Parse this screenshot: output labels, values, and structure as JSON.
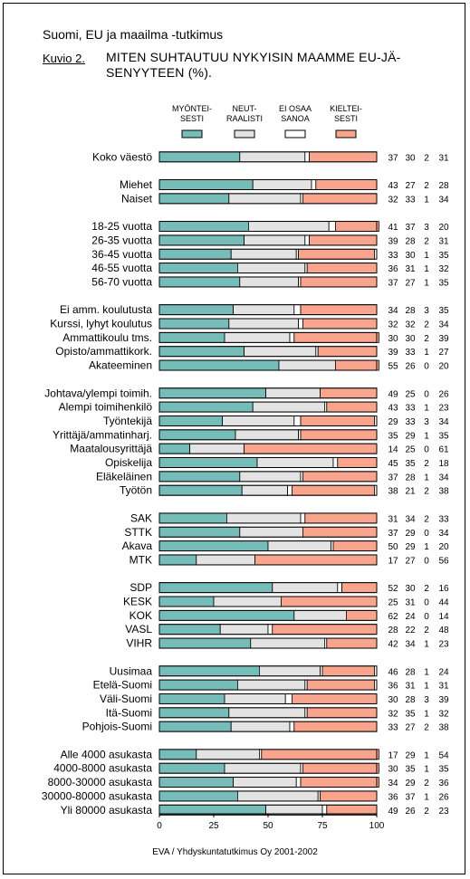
{
  "suptitle": "Suomi, EU ja maailma -tutkimus",
  "figure_label": "Kuvio 2.",
  "title_line1": "MITEN SUHTAUTUU NYKYISIN MAAMME EU-JÄ-",
  "title_line2": "SENYYTEEN (%).",
  "source": "EVA / Yhdyskuntatutkimus Oy 2001-2002",
  "colors": {
    "positive": "#76bcb9",
    "neutral": "#e3e3e3",
    "dont_know": "#ffffff",
    "negative": "#f9a58d"
  },
  "chart_data": {
    "type": "bar",
    "orientation": "horizontal",
    "stacked": true,
    "xlim": [
      0,
      100
    ],
    "xticks": [
      "0",
      "25",
      "50",
      "75",
      "100"
    ],
    "legend_position": "top",
    "grid": false,
    "series": [
      {
        "name_lines": [
          "MYÖNTEI-",
          "SESTI"
        ],
        "color": "#76bcb9"
      },
      {
        "name_lines": [
          "NEUT-",
          "RAALISTI"
        ],
        "color": "#e3e3e3"
      },
      {
        "name_lines": [
          "EI OSAA",
          "SANOA"
        ],
        "color": "#ffffff"
      },
      {
        "name_lines": [
          "KIELTEI-",
          "SESTI"
        ],
        "color": "#f9a58d"
      }
    ],
    "groups": [
      {
        "rows": [
          {
            "label": "Koko väestö",
            "values": [
              37,
              30,
              2,
              31
            ]
          }
        ]
      },
      {
        "rows": [
          {
            "label": "Miehet",
            "values": [
              43,
              27,
              2,
              28
            ]
          },
          {
            "label": "Naiset",
            "values": [
              32,
              33,
              1,
              34
            ]
          }
        ]
      },
      {
        "rows": [
          {
            "label": "18-25 vuotta",
            "values": [
              41,
              37,
              3,
              20
            ]
          },
          {
            "label": "26-35 vuotta",
            "values": [
              39,
              28,
              2,
              31
            ]
          },
          {
            "label": "36-45 vuotta",
            "values": [
              33,
              30,
              1,
              35
            ]
          },
          {
            "label": "46-55 vuotta",
            "values": [
              36,
              31,
              1,
              32
            ]
          },
          {
            "label": "56-70 vuotta",
            "values": [
              37,
              27,
              1,
              35
            ]
          }
        ]
      },
      {
        "rows": [
          {
            "label": "Ei amm. koulutusta",
            "values": [
              34,
              28,
              3,
              35
            ]
          },
          {
            "label": "Kurssi, lyhyt koulutus",
            "values": [
              32,
              32,
              2,
              34
            ]
          },
          {
            "label": "Ammattikoulu tms.",
            "values": [
              30,
              30,
              2,
              39
            ]
          },
          {
            "label": "Opisto/ammattikork.",
            "values": [
              39,
              33,
              1,
              27
            ]
          },
          {
            "label": "Akateeminen",
            "values": [
              55,
              26,
              0,
              20
            ]
          }
        ]
      },
      {
        "rows": [
          {
            "label": "Johtava/ylempi toimih.",
            "values": [
              49,
              25,
              0,
              26
            ]
          },
          {
            "label": "Alempi toimihenkilö",
            "values": [
              43,
              33,
              1,
              23
            ]
          },
          {
            "label": "Työntekijä",
            "values": [
              29,
              33,
              3,
              34
            ]
          },
          {
            "label": "Yrittäjä/ammatinharj.",
            "values": [
              35,
              29,
              1,
              35
            ]
          },
          {
            "label": "Maatalousyrittäjä",
            "values": [
              14,
              25,
              0,
              61
            ]
          },
          {
            "label": "Opiskelija",
            "values": [
              45,
              35,
              2,
              18
            ]
          },
          {
            "label": "Eläkeläinen",
            "values": [
              37,
              28,
              1,
              34
            ]
          },
          {
            "label": "Työtön",
            "values": [
              38,
              21,
              2,
              38
            ]
          }
        ]
      },
      {
        "rows": [
          {
            "label": "SAK",
            "values": [
              31,
              34,
              2,
              33
            ]
          },
          {
            "label": "STTK",
            "values": [
              37,
              29,
              0,
              34
            ]
          },
          {
            "label": "Akava",
            "values": [
              50,
              29,
              1,
              20
            ]
          },
          {
            "label": "MTK",
            "values": [
              17,
              27,
              0,
              56
            ]
          }
        ]
      },
      {
        "rows": [
          {
            "label": "SDP",
            "values": [
              52,
              30,
              2,
              16
            ]
          },
          {
            "label": "KESK",
            "values": [
              25,
              31,
              0,
              44
            ]
          },
          {
            "label": "KOK",
            "values": [
              62,
              24,
              0,
              14
            ]
          },
          {
            "label": "VASL",
            "values": [
              28,
              22,
              2,
              48
            ]
          },
          {
            "label": "VIHR",
            "values": [
              42,
              34,
              1,
              23
            ]
          }
        ]
      },
      {
        "rows": [
          {
            "label": "Uusimaa",
            "values": [
              46,
              28,
              1,
              24
            ]
          },
          {
            "label": "Etelä-Suomi",
            "values": [
              36,
              31,
              1,
              31
            ]
          },
          {
            "label": "Väli-Suomi",
            "values": [
              30,
              28,
              3,
              39
            ]
          },
          {
            "label": "Itä-Suomi",
            "values": [
              32,
              35,
              1,
              32
            ]
          },
          {
            "label": "Pohjois-Suomi",
            "values": [
              33,
              27,
              2,
              38
            ]
          }
        ]
      },
      {
        "rows": [
          {
            "label": "Alle 4000 asukasta",
            "values": [
              17,
              29,
              1,
              54
            ]
          },
          {
            "label": "4000-8000 asukasta",
            "values": [
              30,
              35,
              1,
              35
            ]
          },
          {
            "label": "8000-30000 asukasta",
            "values": [
              34,
              29,
              2,
              36
            ]
          },
          {
            "label": "30000-80000 asukasta",
            "values": [
              36,
              37,
              1,
              26
            ]
          },
          {
            "label": "Yli 80000 asukasta",
            "values": [
              49,
              26,
              2,
              23
            ]
          }
        ]
      }
    ]
  }
}
